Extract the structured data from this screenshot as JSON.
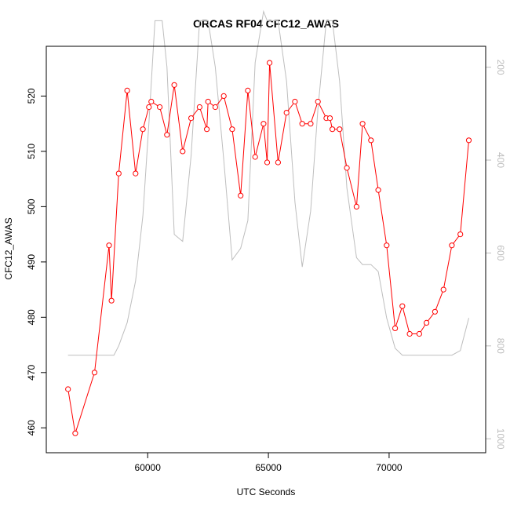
{
  "chart_data": {
    "type": "line",
    "title": "ORCAS RF04 CFC12_AWAS",
    "xlabel": "UTC Seconds",
    "ylabel": "CFC12_AWAS",
    "xlim": [
      55800,
      74000
    ],
    "ylim": [
      455.5,
      529
    ],
    "xticks": [
      60000,
      65000,
      70000
    ],
    "yticks": [
      460,
      470,
      480,
      490,
      500,
      510,
      520
    ],
    "grid": false,
    "legend": "none",
    "series": [
      {
        "axis": "left",
        "color": "#ff0000",
        "marker": "open-circle",
        "x": [
          56700,
          57000,
          57800,
          58400,
          58500,
          58800,
          59150,
          59500,
          59800,
          60050,
          60150,
          60500,
          60800,
          61100,
          61450,
          61800,
          62150,
          62450,
          62500,
          62800,
          63150,
          63500,
          63850,
          64150,
          64450,
          64800,
          64950,
          65050,
          65400,
          65750,
          66100,
          66400,
          66750,
          67050,
          67400,
          67550,
          67650,
          67950,
          68250,
          68650,
          68900,
          69250,
          69550,
          69900,
          70250,
          70550,
          70850,
          71250,
          71550,
          71900,
          72250,
          72600,
          72950,
          73300
        ],
        "values": [
          467,
          459,
          470,
          493,
          483,
          506,
          521,
          506,
          514,
          518,
          519,
          518,
          513,
          522,
          510,
          516,
          518,
          514,
          519,
          518,
          520,
          514,
          502,
          521,
          509,
          515,
          508,
          526,
          508,
          517,
          519,
          515,
          515,
          519,
          516,
          516,
          514,
          514,
          507,
          500,
          515,
          512,
          503,
          493,
          478,
          482,
          477,
          477,
          479,
          481,
          485,
          493,
          495,
          512
        ]
      },
      {
        "axis": "right",
        "color": "#bebebe",
        "marker": "none",
        "x": [
          56700,
          58600,
          58800,
          59150,
          59500,
          59800,
          60050,
          60300,
          60600,
          60800,
          61100,
          61450,
          61800,
          62150,
          62500,
          62800,
          63150,
          63500,
          63850,
          64150,
          64450,
          64800,
          64950,
          65050,
          65400,
          65750,
          66100,
          66400,
          66750,
          67050,
          67400,
          67650,
          67950,
          68250,
          68650,
          68900,
          69250,
          69550,
          69900,
          70250,
          70550,
          70850,
          71250,
          71550,
          71900,
          72250,
          72600,
          72950,
          73300
        ],
        "values": [
          820,
          820,
          800,
          750,
          660,
          520,
          320,
          100,
          100,
          200,
          560,
          575,
          390,
          100,
          100,
          200,
          400,
          615,
          590,
          530,
          190,
          80,
          100,
          100,
          100,
          230,
          490,
          630,
          510,
          290,
          100,
          100,
          230,
          460,
          610,
          625,
          625,
          640,
          740,
          805,
          820,
          820,
          820,
          820,
          820,
          820,
          820,
          810,
          740
        ]
      }
    ],
    "y2ticks": [
      200,
      400,
      600,
      800,
      1000
    ],
    "y2lim": [
      1030,
      155
    ]
  }
}
